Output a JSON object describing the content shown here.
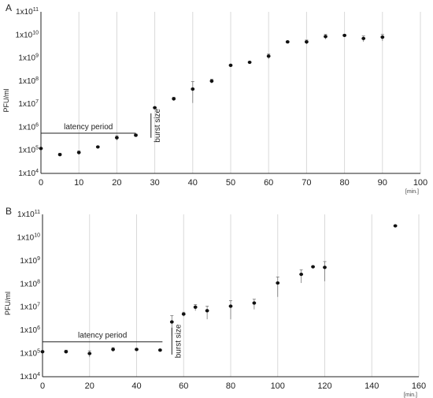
{
  "chart_data": [
    {
      "panel_label": "A",
      "type": "scatter",
      "ylabel": "PFU/ml",
      "xunit": "[min.]",
      "y_scale": "log",
      "ylim": [
        10000,
        100000000000
      ],
      "xlim": [
        0,
        100
      ],
      "x_ticks": [
        0,
        10,
        20,
        30,
        40,
        50,
        60,
        70,
        80,
        90,
        100
      ],
      "y_tick_mantissa": "1x10",
      "y_tick_exponents": [
        "4",
        "5",
        "6",
        "7",
        "8",
        "9",
        "10",
        "11"
      ],
      "grid": "vertical",
      "points": [
        {
          "x": 0,
          "y": 120000,
          "err": 0
        },
        {
          "x": 5,
          "y": 65000,
          "err": 10000
        },
        {
          "x": 10,
          "y": 80000,
          "err": 15000
        },
        {
          "x": 15,
          "y": 140000,
          "err": 0
        },
        {
          "x": 20,
          "y": 350000,
          "err": 80000
        },
        {
          "x": 25,
          "y": 450000,
          "err": 60000
        },
        {
          "x": 30,
          "y": 7000000,
          "err": 0
        },
        {
          "x": 35,
          "y": 17000000,
          "err": 3000000
        },
        {
          "x": 40,
          "y": 45000000,
          "err": 50000000
        },
        {
          "x": 45,
          "y": 100000000,
          "err": 20000000
        },
        {
          "x": 50,
          "y": 480000000,
          "err": 0
        },
        {
          "x": 55,
          "y": 650000000,
          "err": 0
        },
        {
          "x": 60,
          "y": 1200000000,
          "err": 300000000
        },
        {
          "x": 65,
          "y": 5000000000,
          "err": 0
        },
        {
          "x": 70,
          "y": 5000000000,
          "err": 1000000000
        },
        {
          "x": 75,
          "y": 8500000000,
          "err": 2000000000
        },
        {
          "x": 80,
          "y": 9500000000,
          "err": 1000000000
        },
        {
          "x": 85,
          "y": 7000000000,
          "err": 2000000000
        },
        {
          "x": 90,
          "y": 8000000000,
          "err": 2500000000
        }
      ],
      "annotations": {
        "latency_label": "latency period",
        "latency_from": 0,
        "latency_to": 25,
        "latency_y": 550000,
        "burst_label": "burst size",
        "burst_x": 29,
        "burst_from": 350000,
        "burst_to": 4000000
      }
    },
    {
      "panel_label": "B",
      "type": "scatter",
      "ylabel": "PFU/ml",
      "xunit": "[min.]",
      "y_scale": "log",
      "ylim": [
        10000,
        100000000000
      ],
      "xlim": [
        0,
        160
      ],
      "x_ticks": [
        0,
        20,
        40,
        60,
        80,
        100,
        120,
        140,
        160
      ],
      "y_tick_mantissa": "1x10",
      "y_tick_exponents": [
        "4",
        "5",
        "6",
        "7",
        "8",
        "9",
        "10",
        "11"
      ],
      "grid": "vertical",
      "points": [
        {
          "x": 0,
          "y": 120000,
          "err": 0
        },
        {
          "x": 10,
          "y": 120000,
          "err": 20000
        },
        {
          "x": 20,
          "y": 100000,
          "err": 30000
        },
        {
          "x": 30,
          "y": 150000,
          "err": 30000
        },
        {
          "x": 40,
          "y": 150000,
          "err": 0
        },
        {
          "x": 50,
          "y": 140000,
          "err": 0
        },
        {
          "x": 55,
          "y": 2300000,
          "err": 2000000
        },
        {
          "x": 60,
          "y": 5000000,
          "err": 1000000
        },
        {
          "x": 65,
          "y": 10000000,
          "err": 3000000
        },
        {
          "x": 70,
          "y": 7000000,
          "err": 4000000
        },
        {
          "x": 80,
          "y": 11000000,
          "err": 8000000
        },
        {
          "x": 90,
          "y": 15000000,
          "err": 7000000
        },
        {
          "x": 100,
          "y": 110000000,
          "err": 90000000
        },
        {
          "x": 110,
          "y": 260000000,
          "err": 150000000
        },
        {
          "x": 115,
          "y": 550000000,
          "err": 50000000
        },
        {
          "x": 120,
          "y": 520000000,
          "err": 400000000
        },
        {
          "x": 150,
          "y": 32000000000,
          "err": 0
        }
      ],
      "annotations": {
        "latency_label": "latency period",
        "latency_from": 0,
        "latency_to": 51,
        "latency_y": 320000,
        "burst_label": "burst size",
        "burst_x": 55,
        "burst_from": 90000,
        "burst_to": 1300000
      }
    }
  ]
}
